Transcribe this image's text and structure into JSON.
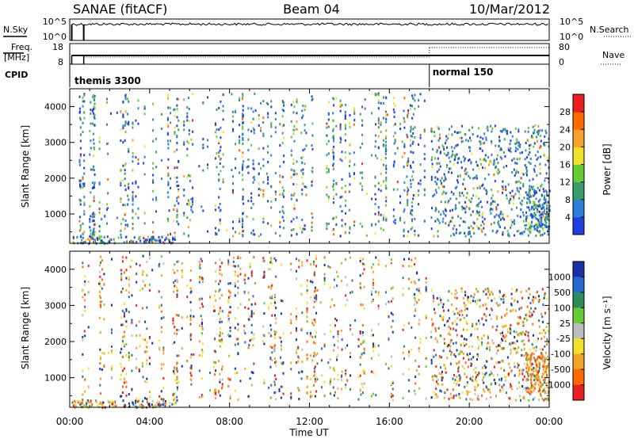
{
  "header": {
    "station": "SANAE (fitACF)",
    "beam": "Beam 04",
    "date": "10/Mar/2012"
  },
  "top_panels": {
    "nsky_label": "N.Sky",
    "nsearch_label": "N.Search",
    "noise_ticks": [
      "10^5",
      "10^0"
    ],
    "freq_label_1": "Freq.",
    "freq_label_2": "[MHz]",
    "freq_ticks": [
      "18",
      "8"
    ],
    "nave_label": "Nave",
    "nave_ticks": [
      "80",
      "0"
    ],
    "cpid_label": "CPID",
    "cpid_segments": [
      {
        "label": "themis 3300",
        "start_hour": 0.0
      },
      {
        "label": "normal 150",
        "start_hour": 18.0
      }
    ]
  },
  "chart_data": [
    {
      "type": "heatmap",
      "name": "power",
      "ylabel": "Slant Range [km]",
      "xlabel": "",
      "xlim_hours": [
        0,
        24
      ],
      "ylim": [
        180,
        4500
      ],
      "yticks": [
        1000,
        2000,
        3000,
        4000
      ],
      "colorbar": {
        "label": "Power [dB]",
        "ticks": [
          "4",
          "8",
          "12",
          "16",
          "20",
          "24",
          "28"
        ],
        "colors": [
          "#1f3fe0",
          "#2a7fd8",
          "#3a9c6a",
          "#66cc33",
          "#f2e12b",
          "#f4a12a",
          "#ff6a00",
          "#e82020"
        ]
      }
    },
    {
      "type": "heatmap",
      "name": "velocity",
      "ylabel": "Slant Range [km]",
      "xlabel": "Time UT",
      "xlim_hours": [
        0,
        24
      ],
      "ylim": [
        180,
        4500
      ],
      "yticks": [
        1000,
        2000,
        3000,
        4000
      ],
      "xticks": [
        "00:00",
        "04:00",
        "08:00",
        "12:00",
        "16:00",
        "20:00",
        "00:00"
      ],
      "colorbar": {
        "label": "Velocity [m s⁻¹]",
        "ticks": [
          "1000",
          "500",
          "100",
          "25",
          "-25",
          "-100",
          "-500",
          "-1000"
        ],
        "colors": [
          "#1a2faa",
          "#2a66d0",
          "#2e8c5a",
          "#66cc33",
          "#bdbdbd",
          "#f2e12b",
          "#f4a12a",
          "#ff6a00",
          "#e82020"
        ]
      }
    }
  ],
  "colors": {
    "axis": "#000000",
    "power_low": "#1f3fe0",
    "power_high": "#e82020"
  }
}
